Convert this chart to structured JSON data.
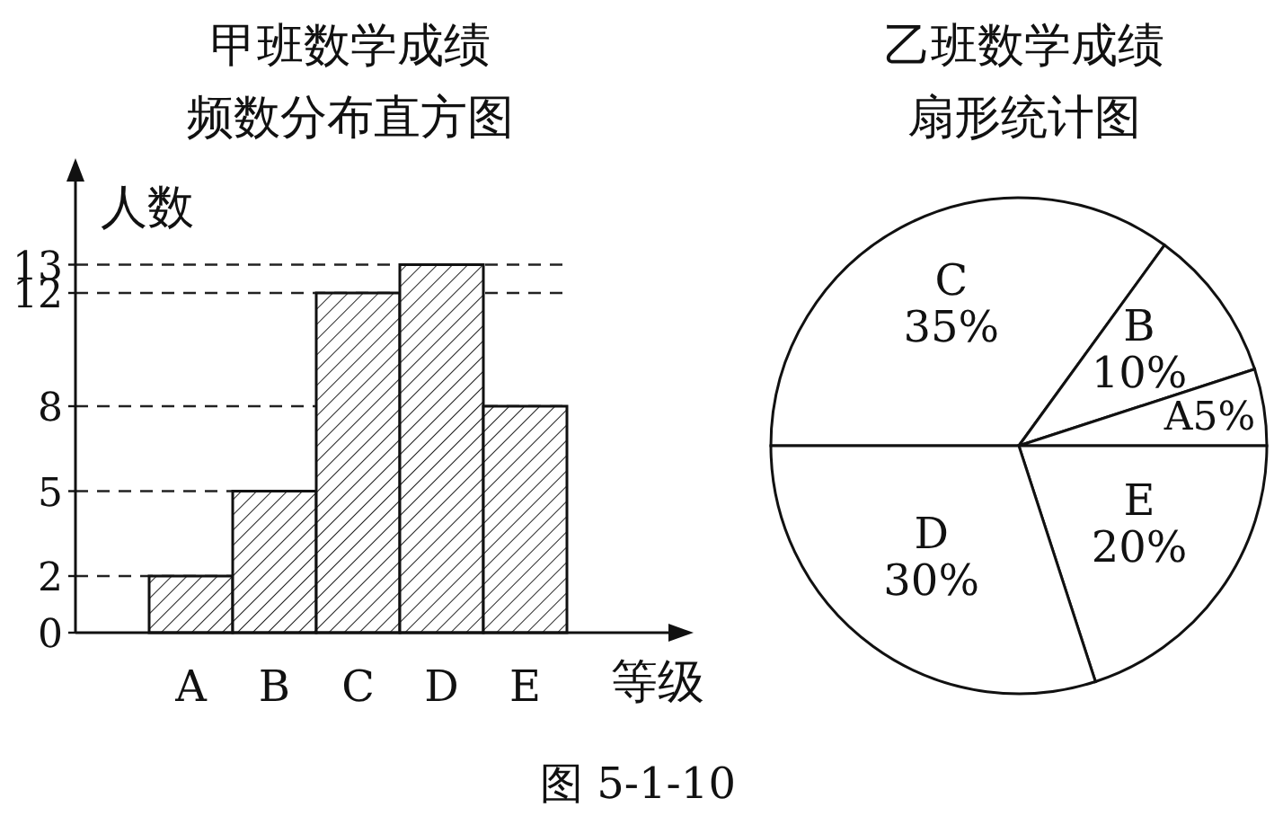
{
  "chart_data": [
    {
      "type": "bar",
      "title": "甲班数学成绩",
      "subtitle": "频数分布直方图",
      "xlabel": "等级",
      "ylabel": "人数",
      "categories": [
        "A",
        "B",
        "C",
        "D",
        "E"
      ],
      "values": [
        2,
        5,
        12,
        13,
        8
      ],
      "ylim": [
        0,
        16
      ],
      "yticks": [
        0,
        2,
        5,
        8,
        12,
        13
      ],
      "ref_lines": [
        {
          "axis": "y",
          "value": 2,
          "line_style": "dashed"
        },
        {
          "axis": "y",
          "value": 5,
          "line_style": "dashed"
        },
        {
          "axis": "y",
          "value": 8,
          "line_style": "dashed"
        },
        {
          "axis": "y",
          "value": 12,
          "line_style": "dashed"
        },
        {
          "axis": "y",
          "value": 13,
          "line_style": "dashed"
        }
      ],
      "annotations": [
        "图 5-1-10"
      ]
    },
    {
      "type": "pie",
      "title": "乙班数学成绩",
      "subtitle": "扇形统计图",
      "categories": [
        "C",
        "B",
        "A",
        "E",
        "D"
      ],
      "values": [
        35,
        10,
        5,
        20,
        30
      ],
      "value_labels": [
        "35%",
        "10%",
        "5%",
        "20%",
        "30%"
      ],
      "colors": [
        "#ffffff",
        "#ffffff",
        "#ffffff",
        "#ffffff",
        "#ffffff"
      ]
    }
  ]
}
